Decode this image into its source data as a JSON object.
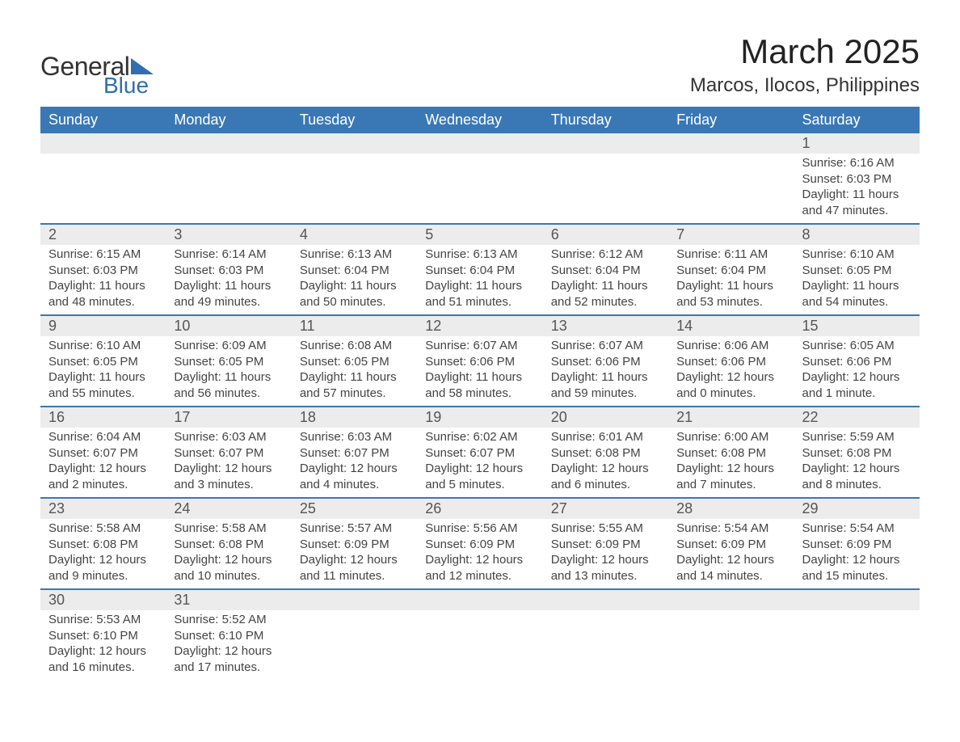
{
  "logo": {
    "text_general": "General",
    "text_blue": "Blue",
    "accent_color": "#2f6fad"
  },
  "title": "March 2025",
  "location": "Marcos, Ilocos, Philippines",
  "colors": {
    "header_bg": "#3a78b5",
    "header_text": "#ffffff",
    "daynum_bg": "#ececec",
    "daynum_text": "#555555",
    "body_text": "#444444",
    "row_border": "#3a78b5"
  },
  "typography": {
    "title_fontsize": 42,
    "location_fontsize": 24,
    "dow_fontsize": 18,
    "daynum_fontsize": 18,
    "detail_fontsize": 15
  },
  "days_of_week": [
    "Sunday",
    "Monday",
    "Tuesday",
    "Wednesday",
    "Thursday",
    "Friday",
    "Saturday"
  ],
  "weeks": [
    [
      null,
      null,
      null,
      null,
      null,
      null,
      {
        "n": "1",
        "sr": "Sunrise: 6:16 AM",
        "ss": "Sunset: 6:03 PM",
        "d1": "Daylight: 11 hours",
        "d2": "and 47 minutes."
      }
    ],
    [
      {
        "n": "2",
        "sr": "Sunrise: 6:15 AM",
        "ss": "Sunset: 6:03 PM",
        "d1": "Daylight: 11 hours",
        "d2": "and 48 minutes."
      },
      {
        "n": "3",
        "sr": "Sunrise: 6:14 AM",
        "ss": "Sunset: 6:03 PM",
        "d1": "Daylight: 11 hours",
        "d2": "and 49 minutes."
      },
      {
        "n": "4",
        "sr": "Sunrise: 6:13 AM",
        "ss": "Sunset: 6:04 PM",
        "d1": "Daylight: 11 hours",
        "d2": "and 50 minutes."
      },
      {
        "n": "5",
        "sr": "Sunrise: 6:13 AM",
        "ss": "Sunset: 6:04 PM",
        "d1": "Daylight: 11 hours",
        "d2": "and 51 minutes."
      },
      {
        "n": "6",
        "sr": "Sunrise: 6:12 AM",
        "ss": "Sunset: 6:04 PM",
        "d1": "Daylight: 11 hours",
        "d2": "and 52 minutes."
      },
      {
        "n": "7",
        "sr": "Sunrise: 6:11 AM",
        "ss": "Sunset: 6:04 PM",
        "d1": "Daylight: 11 hours",
        "d2": "and 53 minutes."
      },
      {
        "n": "8",
        "sr": "Sunrise: 6:10 AM",
        "ss": "Sunset: 6:05 PM",
        "d1": "Daylight: 11 hours",
        "d2": "and 54 minutes."
      }
    ],
    [
      {
        "n": "9",
        "sr": "Sunrise: 6:10 AM",
        "ss": "Sunset: 6:05 PM",
        "d1": "Daylight: 11 hours",
        "d2": "and 55 minutes."
      },
      {
        "n": "10",
        "sr": "Sunrise: 6:09 AM",
        "ss": "Sunset: 6:05 PM",
        "d1": "Daylight: 11 hours",
        "d2": "and 56 minutes."
      },
      {
        "n": "11",
        "sr": "Sunrise: 6:08 AM",
        "ss": "Sunset: 6:05 PM",
        "d1": "Daylight: 11 hours",
        "d2": "and 57 minutes."
      },
      {
        "n": "12",
        "sr": "Sunrise: 6:07 AM",
        "ss": "Sunset: 6:06 PM",
        "d1": "Daylight: 11 hours",
        "d2": "and 58 minutes."
      },
      {
        "n": "13",
        "sr": "Sunrise: 6:07 AM",
        "ss": "Sunset: 6:06 PM",
        "d1": "Daylight: 11 hours",
        "d2": "and 59 minutes."
      },
      {
        "n": "14",
        "sr": "Sunrise: 6:06 AM",
        "ss": "Sunset: 6:06 PM",
        "d1": "Daylight: 12 hours",
        "d2": "and 0 minutes."
      },
      {
        "n": "15",
        "sr": "Sunrise: 6:05 AM",
        "ss": "Sunset: 6:06 PM",
        "d1": "Daylight: 12 hours",
        "d2": "and 1 minute."
      }
    ],
    [
      {
        "n": "16",
        "sr": "Sunrise: 6:04 AM",
        "ss": "Sunset: 6:07 PM",
        "d1": "Daylight: 12 hours",
        "d2": "and 2 minutes."
      },
      {
        "n": "17",
        "sr": "Sunrise: 6:03 AM",
        "ss": "Sunset: 6:07 PM",
        "d1": "Daylight: 12 hours",
        "d2": "and 3 minutes."
      },
      {
        "n": "18",
        "sr": "Sunrise: 6:03 AM",
        "ss": "Sunset: 6:07 PM",
        "d1": "Daylight: 12 hours",
        "d2": "and 4 minutes."
      },
      {
        "n": "19",
        "sr": "Sunrise: 6:02 AM",
        "ss": "Sunset: 6:07 PM",
        "d1": "Daylight: 12 hours",
        "d2": "and 5 minutes."
      },
      {
        "n": "20",
        "sr": "Sunrise: 6:01 AM",
        "ss": "Sunset: 6:08 PM",
        "d1": "Daylight: 12 hours",
        "d2": "and 6 minutes."
      },
      {
        "n": "21",
        "sr": "Sunrise: 6:00 AM",
        "ss": "Sunset: 6:08 PM",
        "d1": "Daylight: 12 hours",
        "d2": "and 7 minutes."
      },
      {
        "n": "22",
        "sr": "Sunrise: 5:59 AM",
        "ss": "Sunset: 6:08 PM",
        "d1": "Daylight: 12 hours",
        "d2": "and 8 minutes."
      }
    ],
    [
      {
        "n": "23",
        "sr": "Sunrise: 5:58 AM",
        "ss": "Sunset: 6:08 PM",
        "d1": "Daylight: 12 hours",
        "d2": "and 9 minutes."
      },
      {
        "n": "24",
        "sr": "Sunrise: 5:58 AM",
        "ss": "Sunset: 6:08 PM",
        "d1": "Daylight: 12 hours",
        "d2": "and 10 minutes."
      },
      {
        "n": "25",
        "sr": "Sunrise: 5:57 AM",
        "ss": "Sunset: 6:09 PM",
        "d1": "Daylight: 12 hours",
        "d2": "and 11 minutes."
      },
      {
        "n": "26",
        "sr": "Sunrise: 5:56 AM",
        "ss": "Sunset: 6:09 PM",
        "d1": "Daylight: 12 hours",
        "d2": "and 12 minutes."
      },
      {
        "n": "27",
        "sr": "Sunrise: 5:55 AM",
        "ss": "Sunset: 6:09 PM",
        "d1": "Daylight: 12 hours",
        "d2": "and 13 minutes."
      },
      {
        "n": "28",
        "sr": "Sunrise: 5:54 AM",
        "ss": "Sunset: 6:09 PM",
        "d1": "Daylight: 12 hours",
        "d2": "and 14 minutes."
      },
      {
        "n": "29",
        "sr": "Sunrise: 5:54 AM",
        "ss": "Sunset: 6:09 PM",
        "d1": "Daylight: 12 hours",
        "d2": "and 15 minutes."
      }
    ],
    [
      {
        "n": "30",
        "sr": "Sunrise: 5:53 AM",
        "ss": "Sunset: 6:10 PM",
        "d1": "Daylight: 12 hours",
        "d2": "and 16 minutes."
      },
      {
        "n": "31",
        "sr": "Sunrise: 5:52 AM",
        "ss": "Sunset: 6:10 PM",
        "d1": "Daylight: 12 hours",
        "d2": "and 17 minutes."
      },
      null,
      null,
      null,
      null,
      null
    ]
  ]
}
